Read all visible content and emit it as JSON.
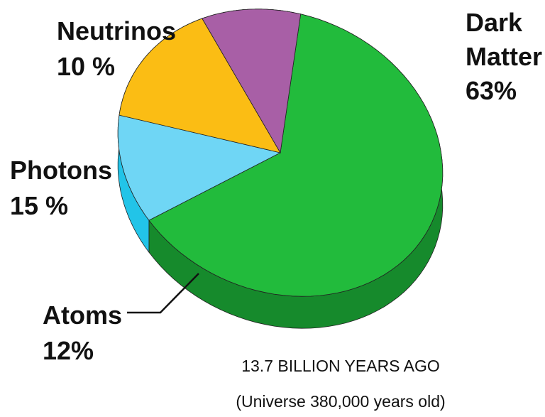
{
  "chart_data": {
    "type": "pie",
    "title": "",
    "caption_line1": "13.7 BILLION YEARS AGO",
    "caption_line2": "(Universe 380,000 years old)",
    "slices": [
      {
        "label_line1": "Dark",
        "label_line2": "Matter",
        "value_text": "63%",
        "value": 63,
        "color": "#22bb3c",
        "side_color": "#168a2c"
      },
      {
        "label_line1": "Atoms",
        "label_line2": "",
        "value_text": "12%",
        "value": 12,
        "color": "#6fd6f5",
        "side_color": "#22c4e8"
      },
      {
        "label_line1": "Photons",
        "label_line2": "",
        "value_text": "15 %",
        "value": 15,
        "color": "#fbbd14",
        "side_color": "#e09a00"
      },
      {
        "label_line1": "Neutrinos",
        "label_line2": "",
        "value_text": "10 %",
        "value": 10,
        "color": "#a85fa6",
        "side_color": "#7d3f7b"
      }
    ]
  }
}
